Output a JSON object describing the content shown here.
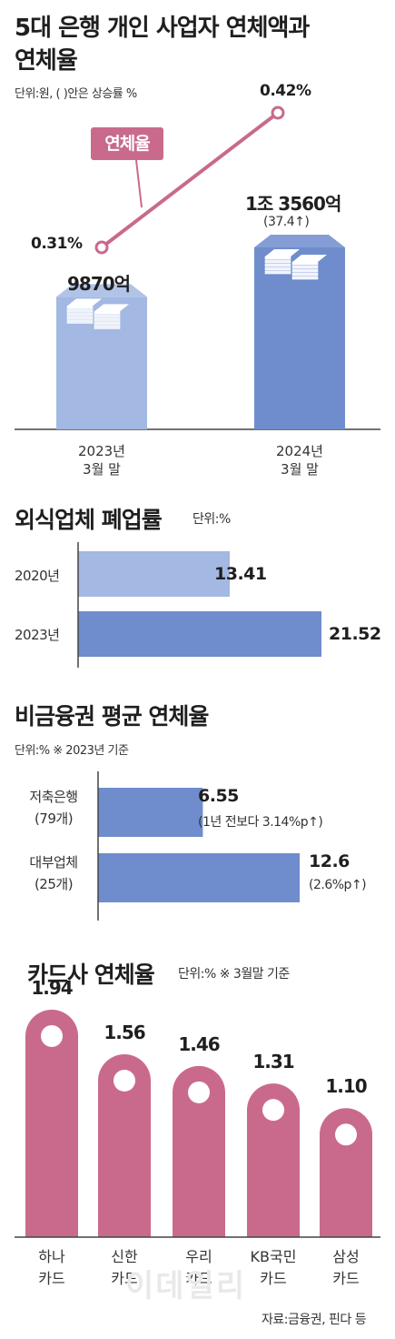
{
  "colors": {
    "bar_light": "#a3b8e2",
    "bar_dark": "#6f8ccc",
    "line": "#c96a8d",
    "card_bar": "#c96a8d",
    "axis": "#444444"
  },
  "chart_data": [
    {
      "type": "bar",
      "title": "5대 은행 개인 사업자 연체액과 연체율",
      "title_line1": "5대 은행 개인 사업자 연체액과",
      "title_line2": "연체율",
      "unit": "단위:원, (   )안은 상승률 %",
      "categories": [
        "2023년 3월 말",
        "2024년 3월 말"
      ],
      "category_lines": [
        [
          "2023년",
          "3월 말"
        ],
        [
          "2024년",
          "3월 말"
        ]
      ],
      "series": [
        {
          "name": "연체액",
          "values": [
            9870,
            13560
          ],
          "labels": [
            "9870억",
            "1조 3560억"
          ],
          "notes": [
            "",
            "(37.4↑)"
          ]
        },
        {
          "name": "연체율",
          "values": [
            0.31,
            0.42
          ],
          "labels": [
            "0.31%",
            "0.42%"
          ]
        }
      ]
    },
    {
      "type": "bar",
      "orientation": "horizontal",
      "title": "외식업체 폐업률",
      "unit": "단위:%",
      "categories": [
        "2020년",
        "2023년"
      ],
      "values": [
        13.41,
        21.52
      ],
      "labels": [
        "13.41",
        "21.52"
      ],
      "xlim": [
        0,
        21.52
      ]
    },
    {
      "type": "bar",
      "orientation": "horizontal",
      "title": "비금융권 평균 연체율",
      "unit": "단위:%  ※ 2023년 기준",
      "categories": [
        "저축은행 (79개)",
        "대부업체 (25개)"
      ],
      "category_lines": [
        [
          "저축은행",
          "(79개)"
        ],
        [
          "대부업체",
          "(25개)"
        ]
      ],
      "values": [
        6.55,
        12.6
      ],
      "labels": [
        "6.55",
        "12.6"
      ],
      "notes": [
        "(1년 전보다 3.14%p↑)",
        "(2.6%p↑)"
      ],
      "xlim": [
        0,
        12.6
      ]
    },
    {
      "type": "bar",
      "title": "카드사 연체율",
      "unit": "단위:%  ※ 3월말 기준",
      "categories": [
        "하나 카드",
        "신한 카드",
        "우리 카드",
        "KB국민 카드",
        "삼성 카드"
      ],
      "category_lines": [
        [
          "하나",
          "카드"
        ],
        [
          "신한",
          "카드"
        ],
        [
          "우리",
          "카드"
        ],
        [
          "KB국민",
          "카드"
        ],
        [
          "삼성",
          "카드"
        ]
      ],
      "values": [
        1.94,
        1.56,
        1.46,
        1.31,
        1.1
      ],
      "labels": [
        "1.94",
        "1.56",
        "1.46",
        "1.31",
        "1.10"
      ],
      "ylim": [
        0,
        1.94
      ]
    }
  ],
  "source": "자료:금융권, 핀다 등",
  "watermark": "이데일리"
}
